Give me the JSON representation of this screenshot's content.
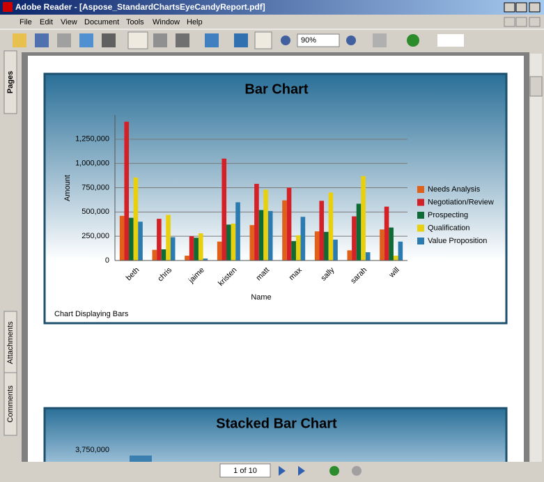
{
  "window": {
    "title": "Adobe Reader - [Aspose_StandardChartsEyeCandyReport.pdf]"
  },
  "menu": [
    "File",
    "Edit",
    "View",
    "Document",
    "Tools",
    "Window",
    "Help"
  ],
  "toolbar": {
    "zoom": "90%"
  },
  "side_tabs": [
    "Pages",
    "Attachments",
    "Comments"
  ],
  "status": {
    "page": "1 of 10"
  },
  "chart_data": {
    "type": "bar",
    "title": "Bar Chart",
    "footnote": "Chart Displaying Bars",
    "x_label": "Name",
    "y_label": "Amount",
    "categories": [
      "beth",
      "chris",
      "jaime",
      "kristen",
      "matt",
      "max",
      "sally",
      "sarah",
      "will"
    ],
    "series": [
      {
        "name": "Needs Analysis",
        "color": "#e0601a",
        "values": [
          460000,
          110000,
          50000,
          195000,
          365000,
          620000,
          300000,
          105000,
          320000
        ]
      },
      {
        "name": "Negotiation/Review",
        "color": "#d42027",
        "values": [
          1430000,
          430000,
          250000,
          1050000,
          790000,
          750000,
          615000,
          455000,
          555000
        ]
      },
      {
        "name": "Prospecting",
        "color": "#0e6b36",
        "values": [
          440000,
          115000,
          235000,
          370000,
          520000,
          200000,
          295000,
          585000,
          340000
        ]
      },
      {
        "name": "Qualification",
        "color": "#e8d00f",
        "values": [
          855000,
          470000,
          280000,
          380000,
          730000,
          260000,
          700000,
          870000,
          50000
        ]
      },
      {
        "name": "Value Proposition",
        "color": "#2b7bb0",
        "values": [
          400000,
          240000,
          20000,
          600000,
          510000,
          450000,
          215000,
          85000,
          195000
        ]
      }
    ],
    "ylim": [
      0,
      1500000
    ],
    "yticks": [
      0,
      {
        "value": 250000,
        "label": "250,000"
      },
      {
        "value": 500000,
        "label": "500,000"
      },
      {
        "value": 750000,
        "label": "750,000"
      },
      {
        "value": 1000000,
        "label": "1,000,000"
      },
      {
        "value": 1250000,
        "label": "1,250,000"
      }
    ],
    "grid": true,
    "legend": "right"
  },
  "next_chart": {
    "title": "Stacked Bar Chart",
    "tick_label": "3,750,000"
  }
}
